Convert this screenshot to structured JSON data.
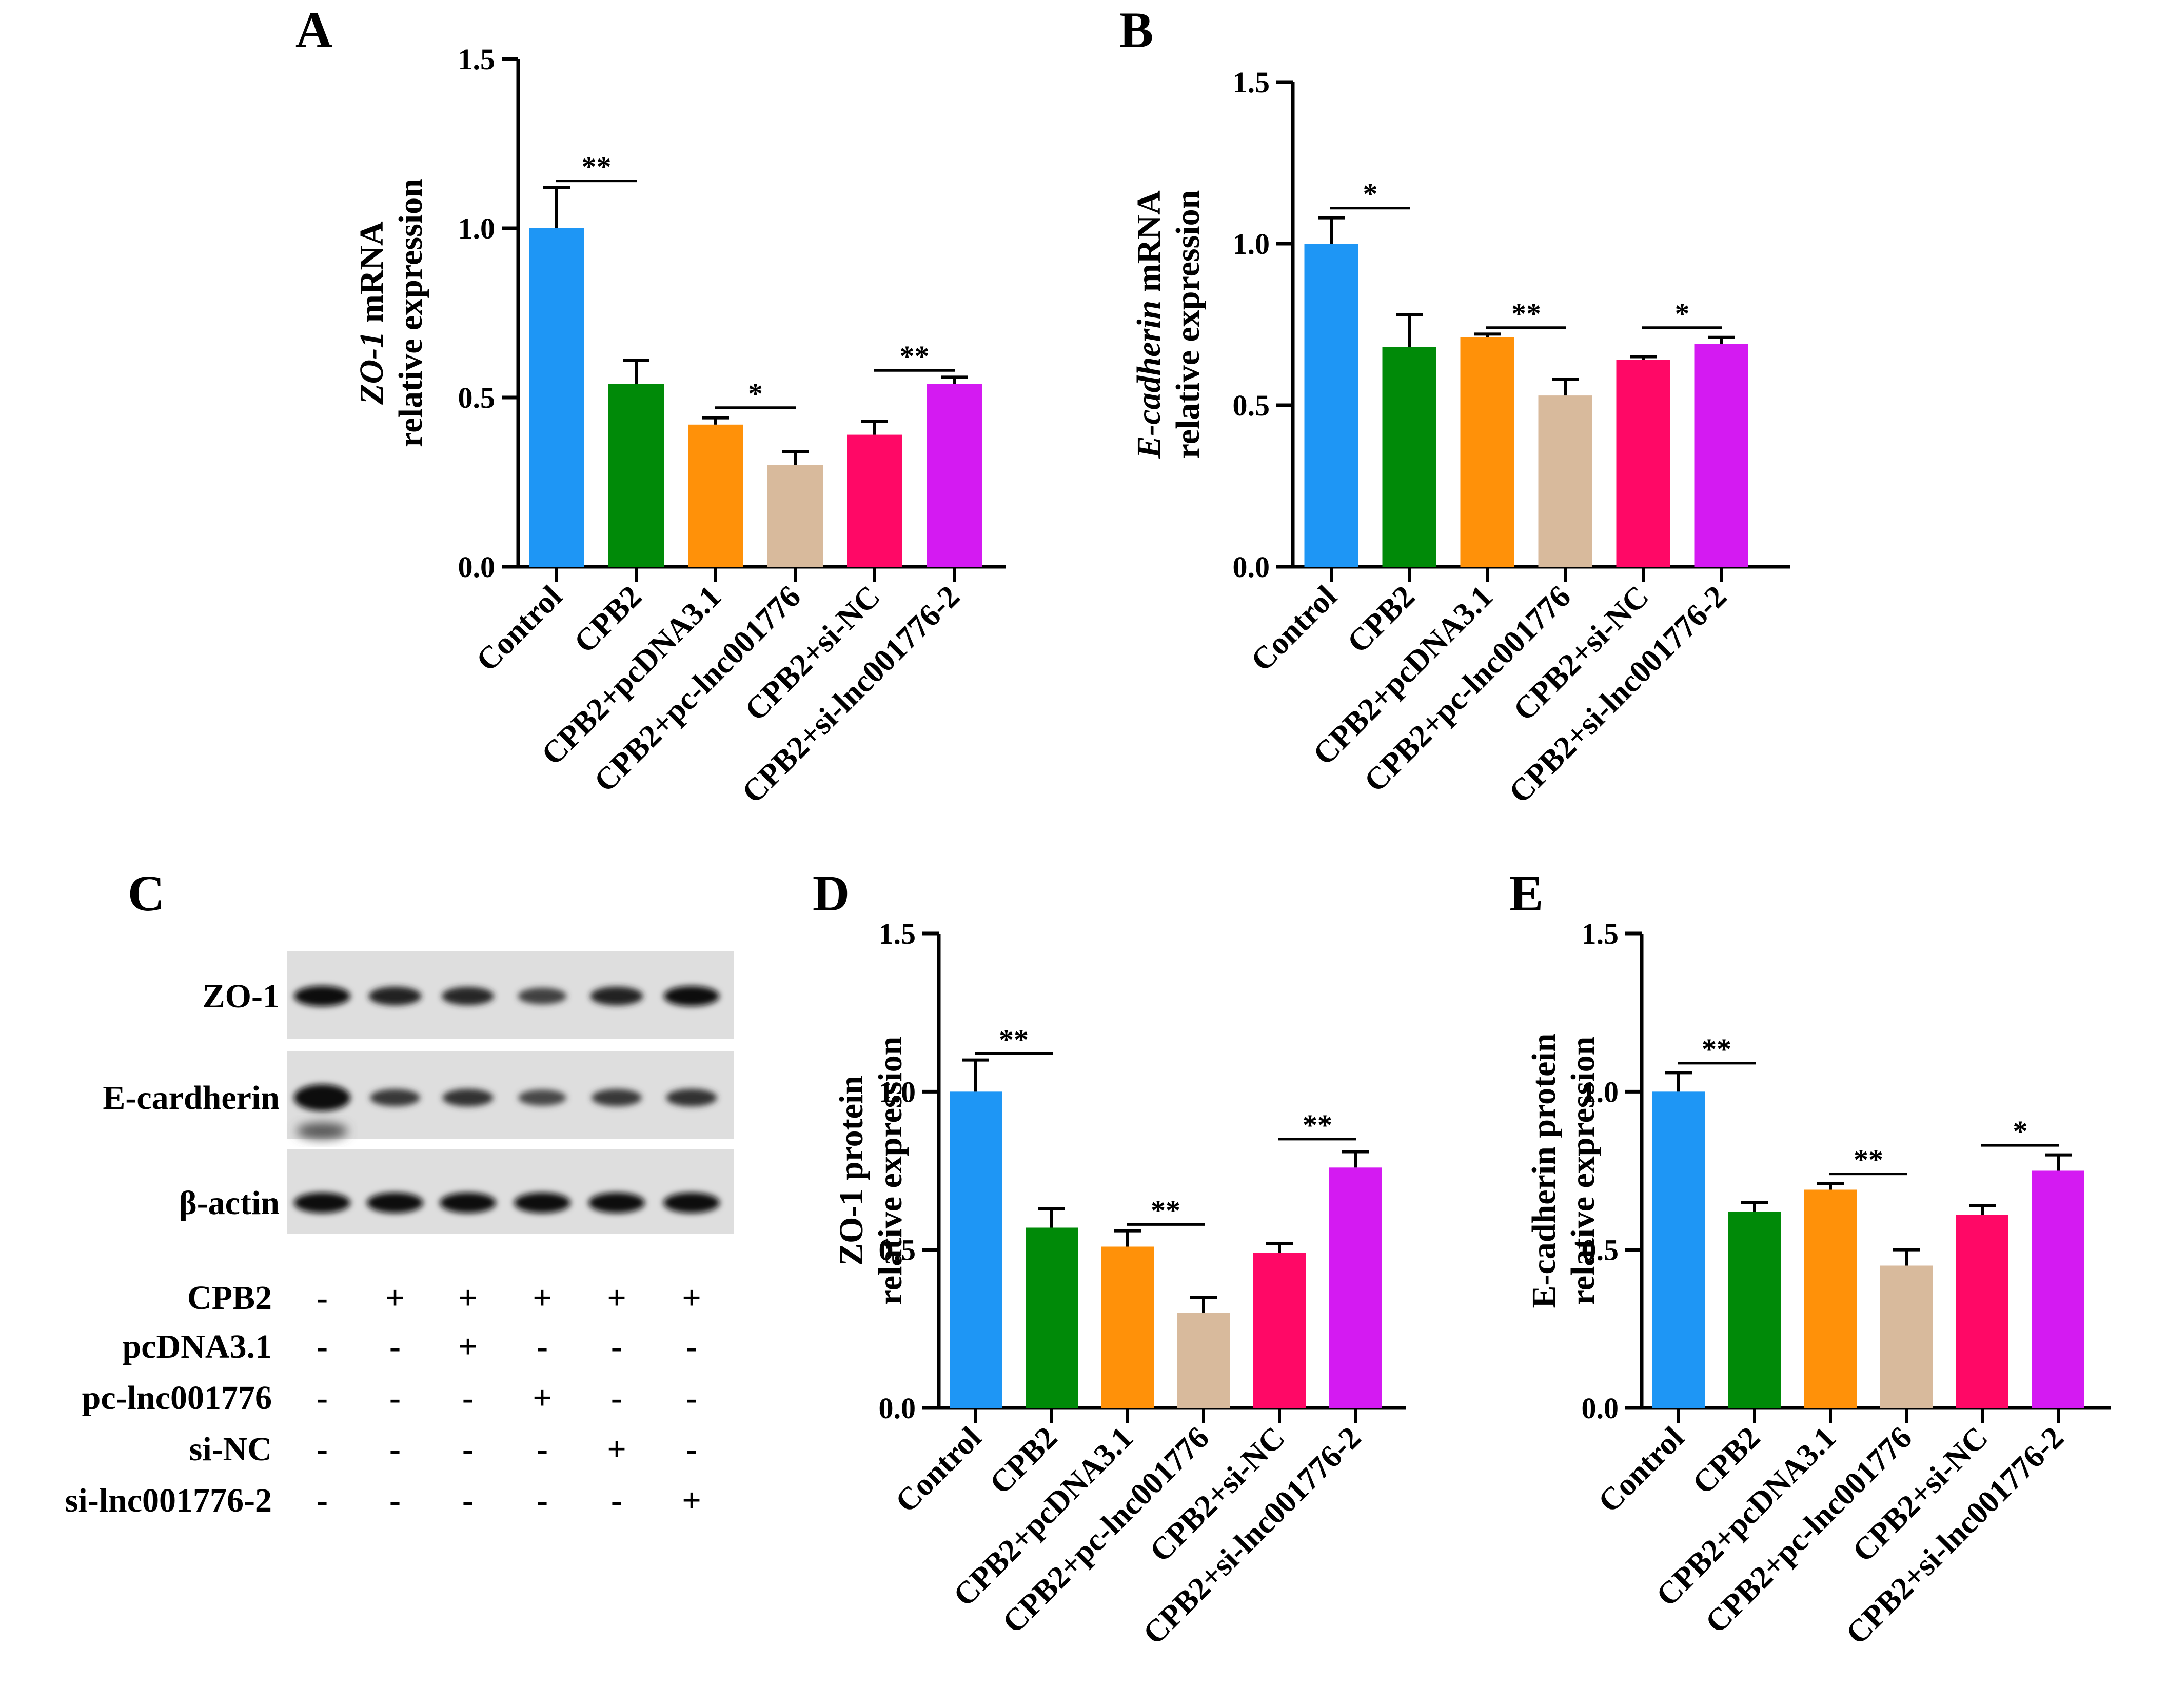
{
  "colors": {
    "Control": "#1E96F5",
    "CPB2": "#008A08",
    "CPB2+pcDNA3.1": "#FF9109",
    "CPB2+pc-lnc001776": "#D8BA9C",
    "CPB2+si-NC": "#FF0866",
    "CPB2+si-lnc001776-2": "#D41AF2"
  },
  "chart_data": [
    {
      "id": "A",
      "panel_label": "A",
      "type": "bar",
      "categories": [
        "Control",
        "CPB2",
        "CPB2+pcDNA3.1",
        "CPB2+pc-lnc001776",
        "CPB2+si-NC",
        "CPB2+si-lnc001776-2"
      ],
      "values": [
        1.0,
        0.54,
        0.42,
        0.3,
        0.39,
        0.54
      ],
      "errors": [
        0.12,
        0.07,
        0.02,
        0.04,
        0.04,
        0.02
      ],
      "ylim": [
        0,
        1.5
      ],
      "yticks": [
        "0.0",
        "0.5",
        "1.0",
        "1.5"
      ],
      "ylabel_lines": [
        [
          "ZO-1",
          " mRNA"
        ],
        [
          "relative expression"
        ]
      ],
      "italic_first": true,
      "significance": [
        {
          "from": 0,
          "to": 1,
          "y": 1.14,
          "label": "**"
        },
        {
          "from": 2,
          "to": 3,
          "y": 0.47,
          "label": "*"
        },
        {
          "from": 4,
          "to": 5,
          "y": 0.58,
          "label": "**"
        }
      ]
    },
    {
      "id": "B",
      "panel_label": "B",
      "type": "bar",
      "categories": [
        "Control",
        "CPB2",
        "CPB2+pcDNA3.1",
        "CPB2+pc-lnc001776",
        "CPB2+si-NC",
        "CPB2+si-lnc001776-2"
      ],
      "values": [
        1.0,
        0.68,
        0.71,
        0.53,
        0.64,
        0.69
      ],
      "errors": [
        0.08,
        0.1,
        0.01,
        0.05,
        0.01,
        0.02
      ],
      "ylim": [
        0,
        1.5
      ],
      "yticks": [
        "0.0",
        "0.5",
        "1.0",
        "1.5"
      ],
      "ylabel_lines": [
        [
          "E-cadherin",
          " mRNA"
        ],
        [
          "relative expression"
        ]
      ],
      "italic_first": true,
      "significance": [
        {
          "from": 0,
          "to": 1,
          "y": 1.11,
          "label": "*"
        },
        {
          "from": 2,
          "to": 3,
          "y": 0.74,
          "label": "**"
        },
        {
          "from": 4,
          "to": 5,
          "y": 0.74,
          "label": "*"
        }
      ]
    },
    {
      "id": "D",
      "panel_label": "D",
      "type": "bar",
      "categories": [
        "Control",
        "CPB2",
        "CPB2+pcDNA3.1",
        "CPB2+pc-lnc001776",
        "CPB2+si-NC",
        "CPB2+si-lnc001776-2"
      ],
      "values": [
        1.0,
        0.57,
        0.51,
        0.3,
        0.49,
        0.76
      ],
      "errors": [
        0.1,
        0.06,
        0.05,
        0.05,
        0.03,
        0.05
      ],
      "ylim": [
        0,
        1.5
      ],
      "yticks": [
        "0.0",
        "0.5",
        "1.0",
        "1.5"
      ],
      "ylabel_lines": [
        [
          "ZO-1 protein"
        ],
        [
          "relative expression"
        ]
      ],
      "italic_first": false,
      "significance": [
        {
          "from": 0,
          "to": 1,
          "y": 1.12,
          "label": "**"
        },
        {
          "from": 2,
          "to": 3,
          "y": 0.58,
          "label": "**"
        },
        {
          "from": 4,
          "to": 5,
          "y": 0.85,
          "label": "**"
        }
      ]
    },
    {
      "id": "E",
      "panel_label": "E",
      "type": "bar",
      "categories": [
        "Control",
        "CPB2",
        "CPB2+pcDNA3.1",
        "CPB2+pc-lnc001776",
        "CPB2+si-NC",
        "CPB2+si-lnc001776-2"
      ],
      "values": [
        1.0,
        0.62,
        0.69,
        0.45,
        0.61,
        0.75
      ],
      "errors": [
        0.06,
        0.03,
        0.02,
        0.05,
        0.03,
        0.05
      ],
      "ylim": [
        0,
        1.5
      ],
      "yticks": [
        "0.0",
        "0.5",
        "1.0",
        "1.5"
      ],
      "ylabel_lines": [
        [
          "E-cadherin protein"
        ],
        [
          "relative expression"
        ]
      ],
      "italic_first": false,
      "significance": [
        {
          "from": 0,
          "to": 1,
          "y": 1.09,
          "label": "**"
        },
        {
          "from": 2,
          "to": 3,
          "y": 0.74,
          "label": "**"
        },
        {
          "from": 4,
          "to": 5,
          "y": 0.83,
          "label": "*"
        }
      ]
    }
  ],
  "blot": {
    "panel_label": "C",
    "bands": [
      "ZO-1",
      "E-cardherin",
      "β-actin"
    ],
    "band_intensity": [
      [
        1.0,
        0.75,
        0.7,
        0.45,
        0.75,
        0.95
      ],
      [
        1.0,
        0.55,
        0.6,
        0.4,
        0.55,
        0.6
      ],
      [
        1.0,
        1.0,
        1.0,
        1.0,
        1.0,
        1.0
      ]
    ],
    "conditions": [
      {
        "name": "CPB2",
        "signs": [
          "-",
          "+",
          "+",
          "+",
          "+",
          "+"
        ]
      },
      {
        "name": "pcDNA3.1",
        "signs": [
          "-",
          "-",
          "+",
          "-",
          "-",
          "-"
        ]
      },
      {
        "name": "pc-lnc001776",
        "signs": [
          "-",
          "-",
          "-",
          "+",
          "-",
          "-"
        ]
      },
      {
        "name": "si-NC",
        "signs": [
          "-",
          "-",
          "-",
          "-",
          "+",
          "-"
        ]
      },
      {
        "name": "si-lnc001776-2",
        "signs": [
          "-",
          "-",
          "-",
          "-",
          "-",
          "+"
        ]
      }
    ]
  }
}
